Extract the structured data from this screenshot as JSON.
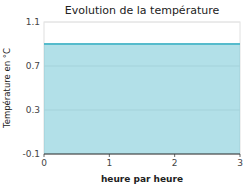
{
  "chart_data": {
    "type": "area",
    "title": "Evolution de la température",
    "xlabel": "heure par heure",
    "ylabel": "Température en °C",
    "x": [
      0,
      3
    ],
    "values": [
      0.9,
      0.9
    ],
    "color": "#55bbcc",
    "xlim": [
      0,
      3
    ],
    "ylim": [
      -0.1,
      1.1
    ],
    "xticks": [
      0,
      1,
      2,
      3
    ],
    "yticks": [
      -0.1,
      0.3,
      0.7,
      1.1
    ],
    "grid": true
  }
}
